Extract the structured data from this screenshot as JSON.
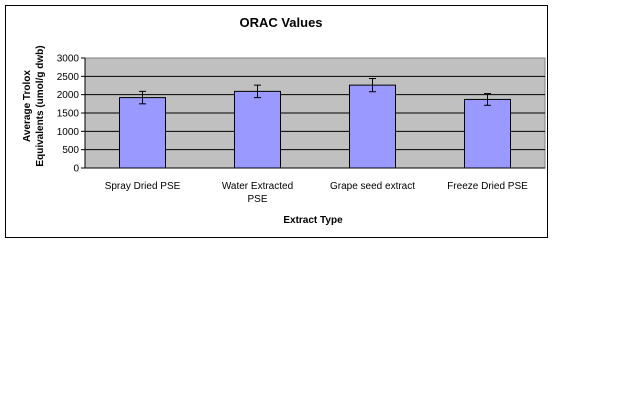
{
  "chart_data": {
    "type": "bar",
    "title": "ORAC Values",
    "xlabel": "Extract Type",
    "ylabel_lines": [
      "Average Trolox",
      "Equivalents (umol/g dwb)"
    ],
    "categories": [
      [
        "Spray Dried PSE"
      ],
      [
        "Water Extracted",
        "PSE"
      ],
      [
        "Grape seed extract"
      ],
      [
        "Freeze Dried PSE"
      ]
    ],
    "values": [
      1920,
      2090,
      2260,
      1870
    ],
    "errors": [
      170,
      170,
      180,
      160
    ],
    "ylim": [
      0,
      3000
    ],
    "yticks": [
      "0",
      "500",
      "1000",
      "1500",
      "2000",
      "2500",
      "3000"
    ],
    "ytick_values": [
      0,
      500,
      1000,
      1500,
      2000,
      2500,
      3000
    ],
    "grid": true,
    "colors": {
      "bar_fill": "#9999ff",
      "bar_stroke": "#000000",
      "plot_background": "#c0c0c0",
      "gridline": "#000000"
    }
  }
}
